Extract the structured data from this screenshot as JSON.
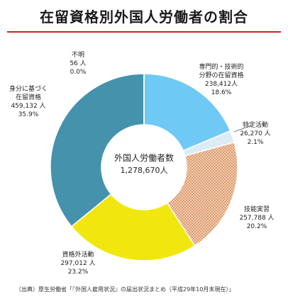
{
  "title": "在留資格別外国人労働者の割合",
  "source_note": "（出典）厚生労働省「『外国人雇用状況』の届出状況まとめ（平成29年10月末現在）」",
  "center": {
    "line1": "外国人労働者数",
    "line2": "1,278,670人"
  },
  "colors": {
    "title_rule": "#d32020"
  },
  "chart_data": {
    "type": "pie",
    "donut": true,
    "total_label": "1,278,670人",
    "slices": [
      {
        "lines": [
          "専門的・技術的",
          "分野の在留資格"
        ],
        "value_label": "238,412人",
        "pct_label": "18.6%",
        "value": 238412,
        "pct": 18.6,
        "color": "#6ec9f5",
        "pattern": "none"
      },
      {
        "lines": [
          "特定活動"
        ],
        "value_label": "26,270 人",
        "pct_label": "2.1%",
        "value": 26270,
        "pct": 2.1,
        "color": "#dcebf4",
        "pattern": "none"
      },
      {
        "lines": [
          "技能実習"
        ],
        "value_label": "257,788 人",
        "pct_label": "20.2%",
        "value": 257788,
        "pct": 20.2,
        "color": "#f2c9a8",
        "pattern": "dots"
      },
      {
        "lines": [
          "資格外活動"
        ],
        "value_label": "297,012 人",
        "pct_label": "23.2%",
        "value": 297012,
        "pct": 23.2,
        "color": "#f2e60f",
        "pattern": "none"
      },
      {
        "lines": [
          "身分に基づく",
          "在留資格"
        ],
        "value_label": "459,132 人",
        "pct_label": "35.9%",
        "value": 459132,
        "pct": 35.9,
        "color": "#4592ad",
        "pattern": "none"
      },
      {
        "lines": [
          "不明"
        ],
        "value_label": "56 人",
        "pct_label": "0.0%",
        "value": 56,
        "pct": 0.0,
        "color": "#4592ad",
        "pattern": "none"
      }
    ]
  }
}
